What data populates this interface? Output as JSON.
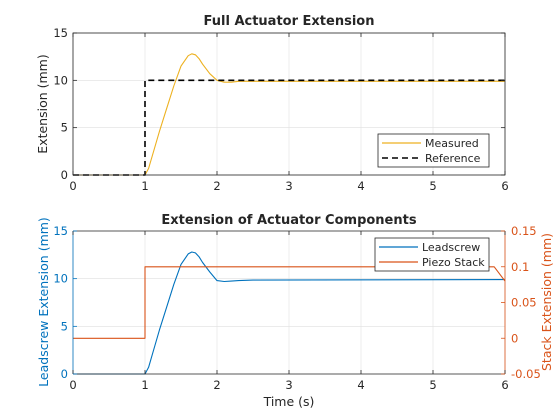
{
  "chart_data": [
    {
      "type": "line",
      "title": "Full Actuator Extension",
      "xlabel": "",
      "ylabel": "Extension (mm)",
      "xlim": [
        0,
        6
      ],
      "ylim": [
        0,
        15
      ],
      "xticks": [
        "0",
        "1",
        "2",
        "3",
        "4",
        "5",
        "6"
      ],
      "yticks": [
        "0",
        "5",
        "10",
        "15"
      ],
      "grid": true,
      "legend_position": "bottom-right",
      "series": [
        {
          "name": "Measured",
          "color": "#EDB120",
          "style": "solid",
          "x": [
            0,
            1.0,
            1.05,
            1.1,
            1.2,
            1.3,
            1.4,
            1.5,
            1.6,
            1.65,
            1.7,
            1.75,
            1.8,
            1.9,
            2.0,
            2.1,
            2.2,
            2.3,
            6
          ],
          "y": [
            0,
            0,
            0.7,
            2.0,
            4.6,
            7.0,
            9.4,
            11.5,
            12.6,
            12.8,
            12.7,
            12.3,
            11.7,
            10.7,
            10.0,
            9.8,
            9.8,
            9.9,
            9.9
          ]
        },
        {
          "name": "Reference",
          "color": "#000000",
          "style": "dashed",
          "x": [
            0,
            1.0,
            1.0,
            6
          ],
          "y": [
            0,
            0,
            10,
            10
          ]
        }
      ]
    },
    {
      "type": "line",
      "title": "Extension of Actuator Components",
      "xlabel": "Time (s)",
      "ylabel": "Leadscrew Extension (mm)",
      "ylabel_right": "Stack Extension (mm)",
      "xlim": [
        0,
        6
      ],
      "ylim": [
        0,
        15
      ],
      "ylim_right": [
        -0.05,
        0.15
      ],
      "xticks": [
        "0",
        "1",
        "2",
        "3",
        "4",
        "5",
        "6"
      ],
      "yticks": [
        "0",
        "5",
        "10",
        "15"
      ],
      "yticks_right": [
        "-0.05",
        "0",
        "0.05",
        "0.1",
        "0.15"
      ],
      "left_axis_color": "#0072BD",
      "right_axis_color": "#D95319",
      "grid": true,
      "legend_position": "top-right",
      "series": [
        {
          "name": "Leadscrew",
          "color": "#0072BD",
          "axis": "left",
          "style": "solid",
          "x": [
            0,
            1.0,
            1.05,
            1.1,
            1.2,
            1.3,
            1.4,
            1.5,
            1.6,
            1.65,
            1.7,
            1.75,
            1.8,
            1.9,
            2.0,
            2.1,
            2.2,
            2.3,
            2.5,
            6
          ],
          "y": [
            0,
            0,
            0.7,
            2.0,
            4.6,
            7.0,
            9.4,
            11.5,
            12.6,
            12.8,
            12.7,
            12.3,
            11.7,
            10.7,
            9.8,
            9.7,
            9.75,
            9.8,
            9.85,
            9.9
          ]
        },
        {
          "name": "Piezo Stack",
          "color": "#D95319",
          "axis": "right",
          "style": "solid",
          "x": [
            0,
            1.0,
            1.0,
            5.85,
            6.0
          ],
          "y": [
            0,
            0,
            0.1,
            0.1,
            0.08
          ]
        }
      ]
    }
  ]
}
